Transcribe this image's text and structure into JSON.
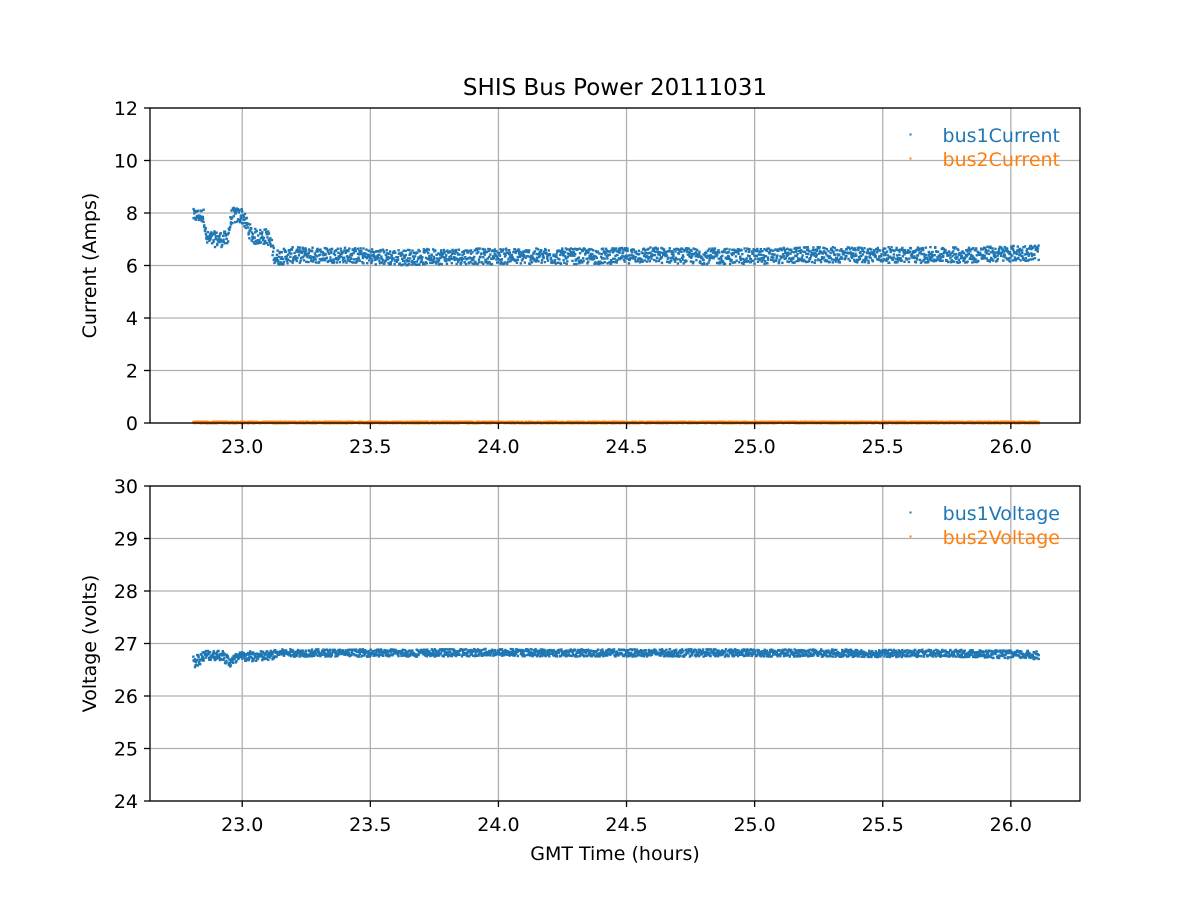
{
  "chart_data": {
    "type": "scatter",
    "title": "SHIS Bus Power 20111031",
    "xlabel": "GMT Time (hours)",
    "x_ticks": [
      "23.0",
      "23.5",
      "24.0",
      "24.5",
      "25.0",
      "25.5",
      "26.0"
    ],
    "xlim": [
      22.64,
      26.27
    ],
    "grid": true,
    "panels": [
      {
        "ylabel": "Current (Amps)",
        "ylim": [
          0,
          12
        ],
        "y_ticks": [
          "0",
          "2",
          "4",
          "6",
          "8",
          "10",
          "12"
        ],
        "legend_position": "top-right",
        "series": [
          {
            "name": "bus1Current",
            "color": "#1f77b4",
            "x": [
              22.81,
              22.85,
              22.86,
              22.9,
              22.94,
              22.96,
              23.0,
              23.04,
              23.1,
              23.13,
              23.2,
              23.4,
              23.6,
              23.8,
              24.0,
              24.2,
              24.4,
              24.6,
              24.8,
              25.0,
              25.2,
              25.4,
              25.6,
              25.8,
              26.0,
              26.11
            ],
            "y": [
              7.9,
              7.9,
              7.0,
              7.0,
              7.0,
              7.9,
              7.9,
              7.1,
              7.1,
              6.3,
              6.4,
              6.4,
              6.3,
              6.35,
              6.35,
              6.35,
              6.35,
              6.4,
              6.35,
              6.35,
              6.4,
              6.4,
              6.4,
              6.4,
              6.45,
              6.5
            ],
            "spread": [
              0.25,
              0.25,
              0.3,
              0.3,
              0.3,
              0.3,
              0.3,
              0.3,
              0.3,
              0.3,
              0.3,
              0.3,
              0.3,
              0.3,
              0.3,
              0.3,
              0.3,
              0.3,
              0.3,
              0.3,
              0.3,
              0.3,
              0.3,
              0.3,
              0.3,
              0.3
            ]
          },
          {
            "name": "bus2Current",
            "color": "#ff7f0e",
            "x": [
              22.81,
              26.11
            ],
            "y": [
              0.02,
              0.02
            ],
            "spread": [
              0.03,
              0.03
            ]
          }
        ]
      },
      {
        "ylabel": "Voltage (volts)",
        "ylim": [
          24,
          30
        ],
        "y_ticks": [
          "24",
          "25",
          "26",
          "27",
          "28",
          "29",
          "30"
        ],
        "legend_position": "top-right",
        "series": [
          {
            "name": "bus1Voltage",
            "color": "#1f77b4",
            "x": [
              22.81,
              22.86,
              22.92,
              22.95,
              23.0,
              23.1,
              23.15,
              23.4,
              23.7,
              24.0,
              24.3,
              24.6,
              24.9,
              25.2,
              25.5,
              25.8,
              26.11
            ],
            "y": [
              26.65,
              26.78,
              26.78,
              26.65,
              26.75,
              26.76,
              26.82,
              26.82,
              26.82,
              26.83,
              26.82,
              26.82,
              26.82,
              26.82,
              26.81,
              26.81,
              26.78
            ],
            "spread": [
              0.12,
              0.1,
              0.1,
              0.12,
              0.1,
              0.1,
              0.07,
              0.07,
              0.07,
              0.07,
              0.07,
              0.07,
              0.07,
              0.07,
              0.07,
              0.07,
              0.08
            ]
          },
          {
            "name": "bus2Voltage",
            "color": "#ff7f0e",
            "x": [],
            "y": [],
            "spread": []
          }
        ]
      }
    ]
  }
}
